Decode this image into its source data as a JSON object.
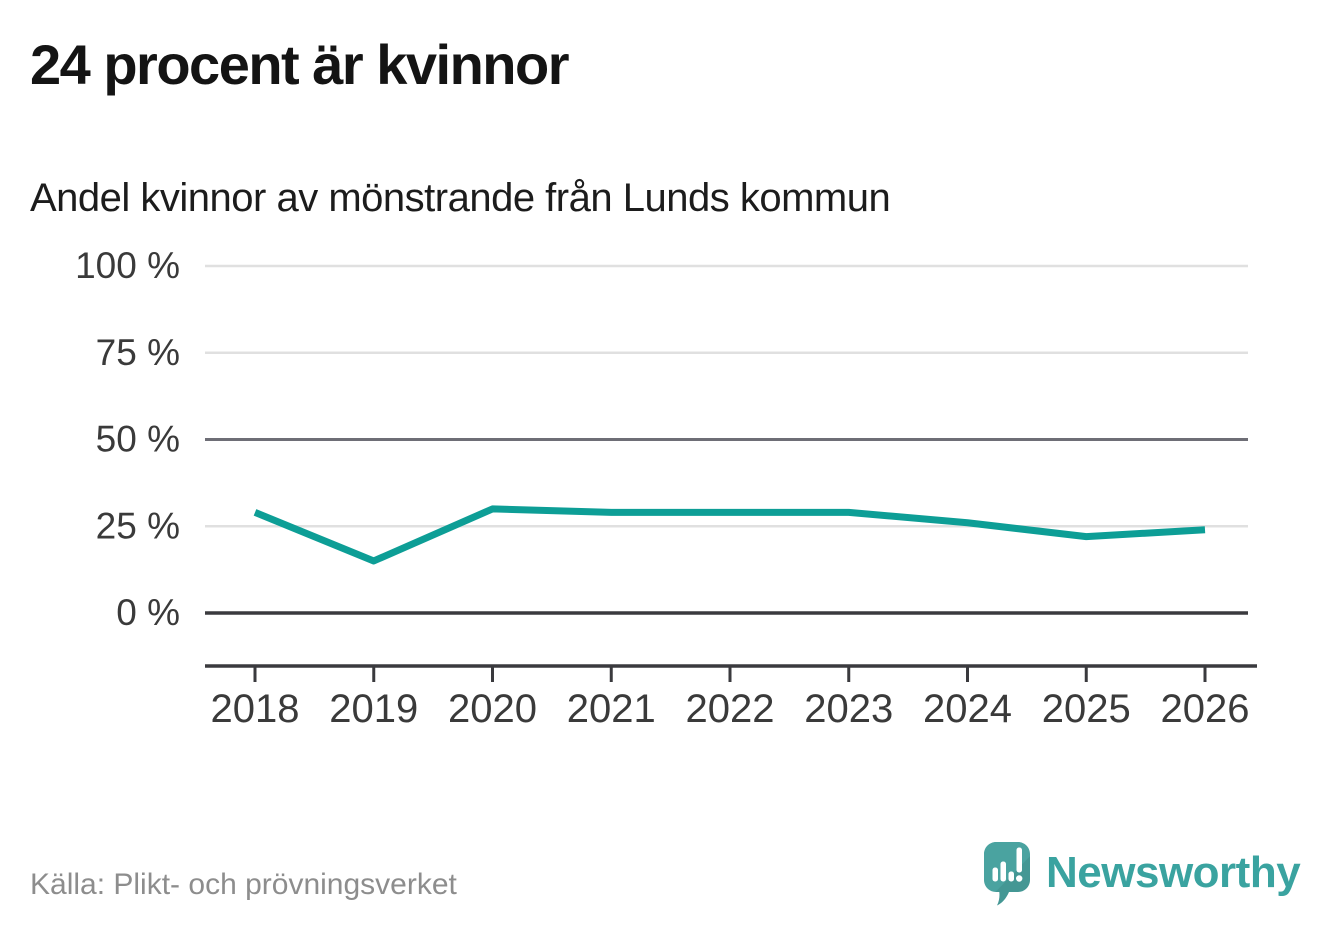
{
  "header": {
    "title": "24 procent är kvinnor",
    "subtitle": "Andel kvinnor av mönstrande från Lunds kommun"
  },
  "chart_data": {
    "type": "line",
    "title": "24 procent är kvinnor",
    "subtitle": "Andel kvinnor av mönstrande från Lunds kommun",
    "x": [
      2018,
      2019,
      2020,
      2021,
      2022,
      2023,
      2024,
      2025,
      2026
    ],
    "series": [
      {
        "name": "Andel kvinnor av mönstrande",
        "color": "#0d9e96",
        "values": [
          29,
          15,
          30,
          29,
          29,
          29,
          26,
          22,
          24
        ]
      }
    ],
    "unit": "%",
    "ylim": [
      0,
      100
    ],
    "y_ticks": [
      {
        "value": 0,
        "label": "0 %"
      },
      {
        "value": 25,
        "label": "25 %"
      },
      {
        "value": 50,
        "label": "50 %"
      },
      {
        "value": 75,
        "label": "75 %"
      },
      {
        "value": 100,
        "label": "100 %"
      }
    ],
    "grid": "horizontal",
    "legend": "none"
  },
  "footer": {
    "source": "Källa: Plikt- och prövningsverket",
    "brand": "Newsworthy"
  },
  "colors": {
    "line": "#0d9e96",
    "grid_light": "#e0e0e0",
    "grid_mid": "#6e6e76",
    "axis_dark": "#3a3a3e",
    "tick_label": "#3a3a3a",
    "title": "#141414",
    "source": "#8d8d8d",
    "brand": "#3aa3a0"
  }
}
